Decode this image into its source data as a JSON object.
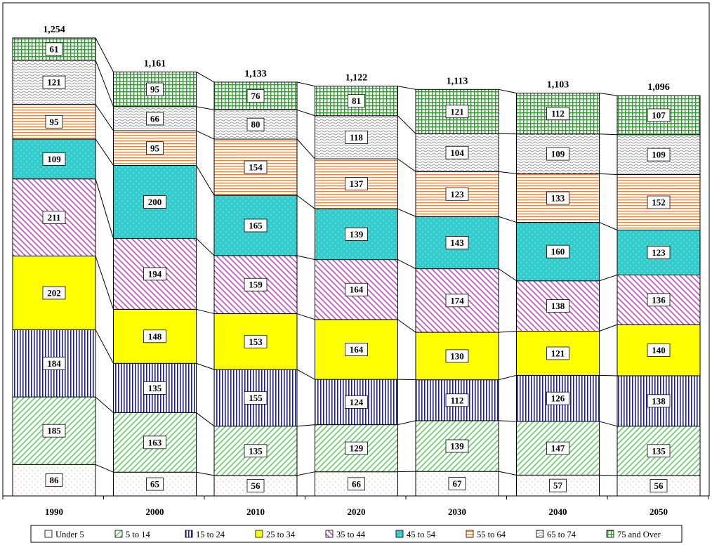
{
  "chart_data": {
    "type": "bar",
    "stacked": true,
    "title": "",
    "xlabel": "",
    "ylabel": "",
    "categories": [
      "1990",
      "2000",
      "2010",
      "2020",
      "2030",
      "2040",
      "2050"
    ],
    "totals": [
      "1,254",
      "1,161",
      "1,133",
      "1,122",
      "1,113",
      "1,103",
      "1,096"
    ],
    "series": [
      {
        "name": "Under 5",
        "values": [
          86,
          65,
          56,
          66,
          67,
          57,
          56
        ],
        "color": "#f2c4b8",
        "pattern": "dots"
      },
      {
        "name": "5 to 14",
        "values": [
          185,
          163,
          135,
          129,
          139,
          147,
          135
        ],
        "color": "#66cc66",
        "pattern": "diag-up"
      },
      {
        "name": "15 to 24",
        "values": [
          184,
          135,
          155,
          124,
          112,
          126,
          138
        ],
        "color": "#1f1f8f",
        "pattern": "vertical"
      },
      {
        "name": "25 to 34",
        "values": [
          202,
          148,
          153,
          164,
          130,
          121,
          140
        ],
        "color": "#ffff00",
        "pattern": "solid"
      },
      {
        "name": "35 to 44",
        "values": [
          211,
          194,
          159,
          164,
          174,
          138,
          136
        ],
        "color": "#cc44cc",
        "pattern": "diag-down"
      },
      {
        "name": "45 to 54",
        "values": [
          109,
          200,
          165,
          139,
          143,
          160,
          123
        ],
        "color": "#33cccc",
        "pattern": "dots-dense"
      },
      {
        "name": "55 to 64",
        "values": [
          95,
          95,
          154,
          137,
          123,
          133,
          152
        ],
        "color": "#e0864a",
        "pattern": "horizontal"
      },
      {
        "name": "65 to 74",
        "values": [
          121,
          66,
          80,
          118,
          104,
          109,
          109
        ],
        "color": "#9a9a9a",
        "pattern": "wave"
      },
      {
        "name": "75 and Over",
        "values": [
          61,
          95,
          76,
          81,
          121,
          112,
          107
        ],
        "color": "#339933",
        "pattern": "grid"
      }
    ],
    "grid": false,
    "legend_position": "bottom"
  }
}
